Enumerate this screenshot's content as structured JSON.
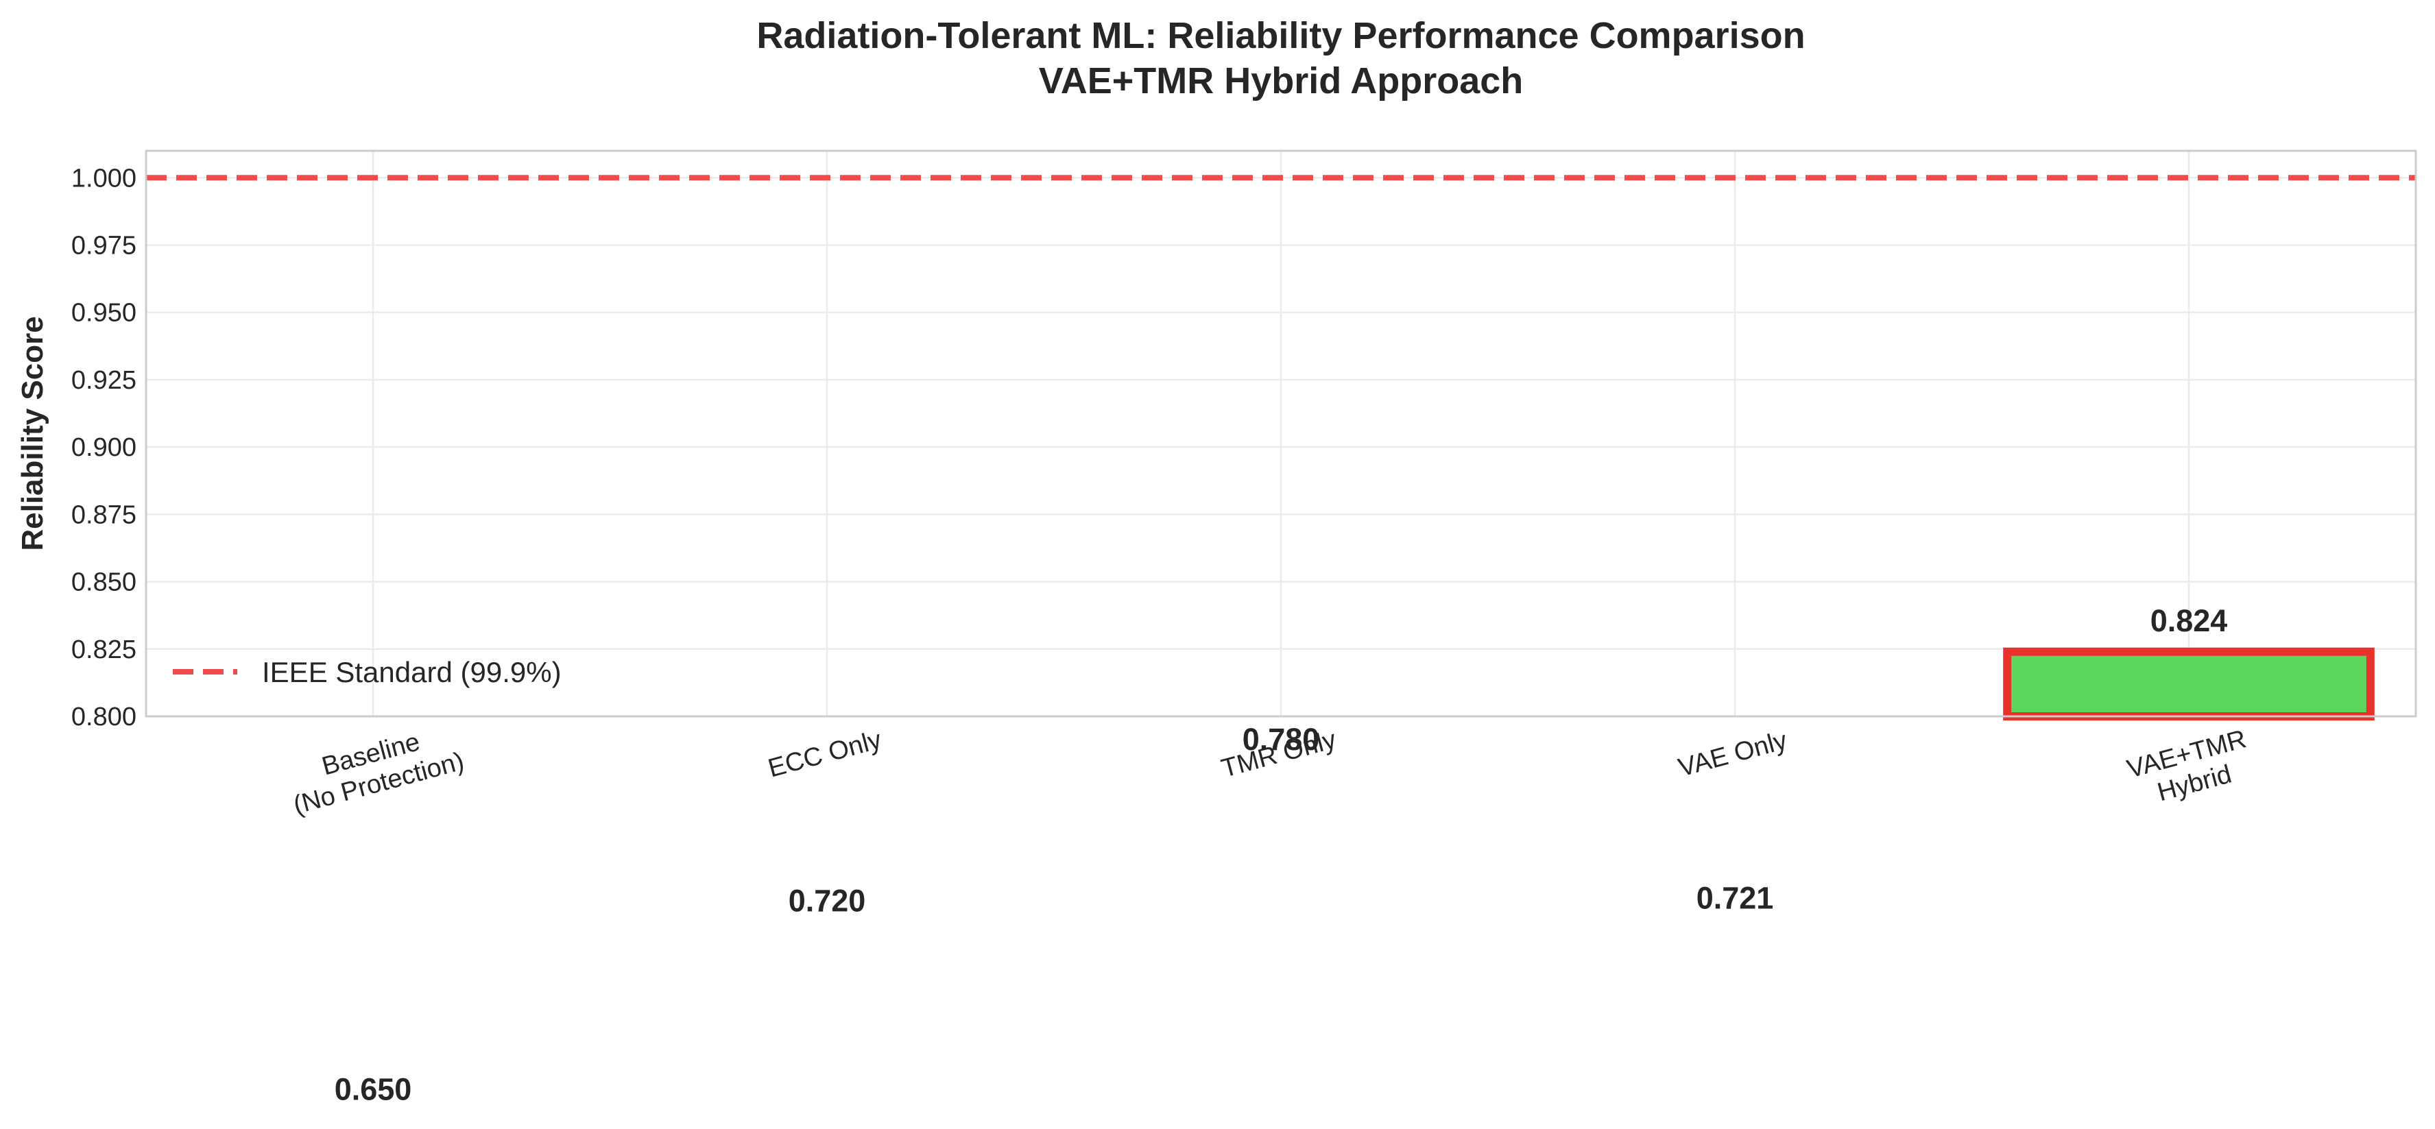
{
  "chart_data": {
    "type": "bar",
    "title_lines": [
      "Radiation-Tolerant ML: Reliability Performance Comparison",
      "VAE+TMR Hybrid Approach"
    ],
    "xlabel": "",
    "ylabel": "Reliability Score",
    "ylim": [
      0.8,
      1.01
    ],
    "yticks": [
      "0.800",
      "0.825",
      "0.850",
      "0.875",
      "0.900",
      "0.925",
      "0.950",
      "0.975",
      "1.000"
    ],
    "categories": [
      [
        "Baseline",
        "(No Protection)"
      ],
      [
        "ECC Only"
      ],
      [
        "TMR Only"
      ],
      [
        "VAE Only"
      ],
      [
        "VAE+TMR",
        "Hybrid"
      ]
    ],
    "values": [
      0.65,
      0.72,
      0.78,
      0.721,
      0.824
    ],
    "value_labels": [
      "0.650",
      "0.720",
      "0.780",
      "0.721",
      "0.824"
    ],
    "highlighted_index": 4,
    "bar_color": "#5cd65c",
    "highlight_edge_color": "#e8322c",
    "reference_line": {
      "value": 1.0,
      "label": "IEEE Standard (99.9%)",
      "color": "#f04b4b"
    },
    "legend_position": "lower-left",
    "grid": true
  }
}
